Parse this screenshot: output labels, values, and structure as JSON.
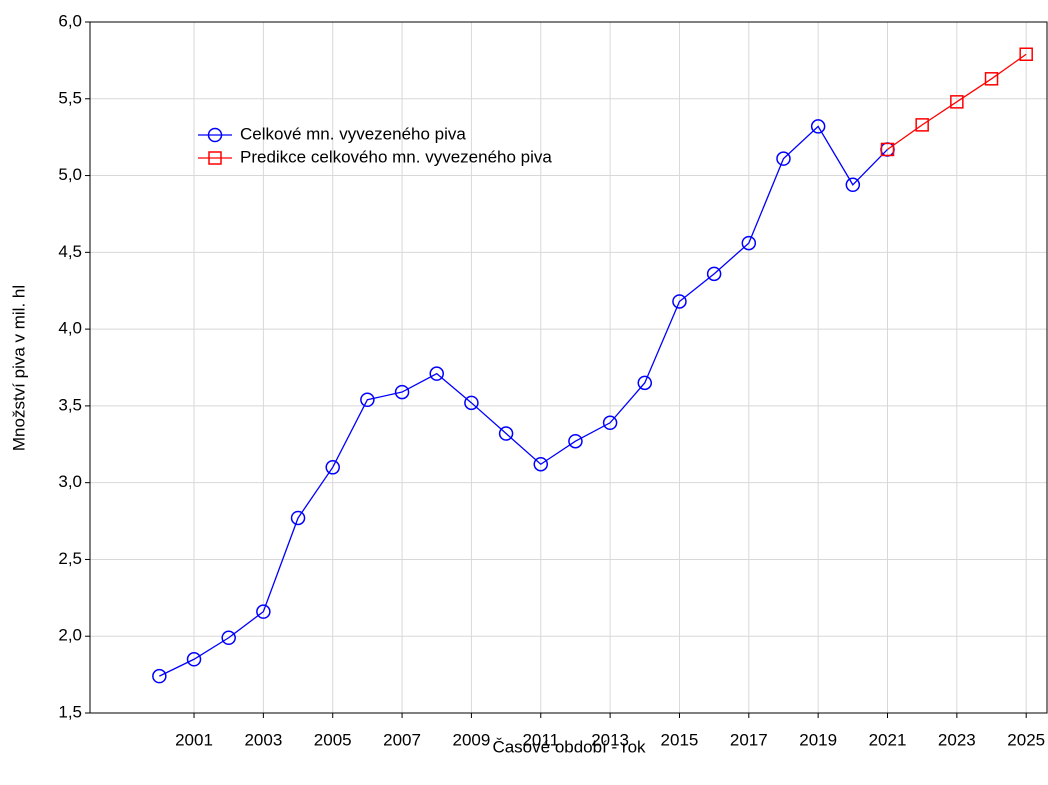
{
  "chart_data": {
    "type": "line",
    "x_label": "Časové období - rok",
    "y_label": "Množství piva v mil. hl",
    "xlim": [
      1998,
      2025.6
    ],
    "ylim": [
      1.5,
      6.0
    ],
    "xticks": [
      2001,
      2003,
      2005,
      2007,
      2009,
      2011,
      2013,
      2015,
      2017,
      2019,
      2021,
      2023,
      2025
    ],
    "yticks": [
      {
        "value": 1.5,
        "label": "1,5"
      },
      {
        "value": 2.0,
        "label": "2,0"
      },
      {
        "value": 2.5,
        "label": "2,5"
      },
      {
        "value": 3.0,
        "label": "3,0"
      },
      {
        "value": 3.5,
        "label": "3,5"
      },
      {
        "value": 4.0,
        "label": "4,0"
      },
      {
        "value": 4.5,
        "label": "4,5"
      },
      {
        "value": 5.0,
        "label": "5,0"
      },
      {
        "value": 5.5,
        "label": "5,5"
      },
      {
        "value": 6.0,
        "label": "6,0"
      }
    ],
    "grid": true,
    "series": [
      {
        "name": "Celkové mn. vyvezeného piva",
        "color": "#0000ff",
        "marker": "circle",
        "x": [
          2000,
          2001,
          2002,
          2003,
          2004,
          2005,
          2006,
          2007,
          2008,
          2009,
          2010,
          2011,
          2012,
          2013,
          2014,
          2015,
          2016,
          2017,
          2018,
          2019,
          2020,
          2021
        ],
        "values": [
          1.74,
          1.85,
          1.99,
          2.16,
          2.77,
          3.1,
          3.54,
          3.59,
          3.71,
          3.52,
          3.32,
          3.12,
          3.27,
          3.39,
          3.65,
          4.18,
          4.36,
          4.56,
          5.11,
          5.32,
          4.94,
          5.17
        ]
      },
      {
        "name": "Predikce celkového mn. vyvezeného piva",
        "color": "#ff0000",
        "marker": "square",
        "x": [
          2021,
          2022,
          2023,
          2024,
          2025
        ],
        "values": [
          5.17,
          5.33,
          5.48,
          5.63,
          5.79
        ]
      }
    ]
  }
}
